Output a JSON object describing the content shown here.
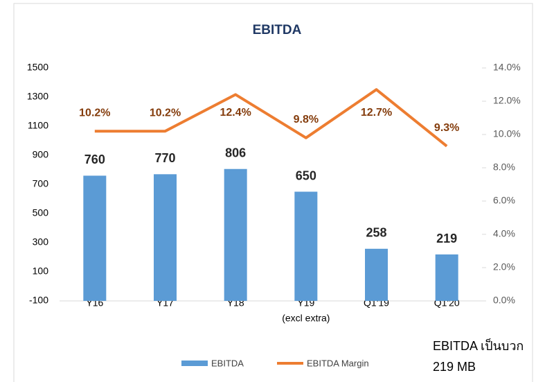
{
  "chart_data": {
    "type": "bar_line",
    "title": "EBITDA",
    "categories": [
      "Y16",
      "Y17",
      "Y18",
      "Y19",
      "Q1'19",
      "Q1'20"
    ],
    "category_note": "(excl extra)",
    "series": [
      {
        "name": "EBITDA",
        "color": "#5b9bd5",
        "type": "bar",
        "values": [
          760,
          770,
          806,
          650,
          258,
          219
        ]
      },
      {
        "name": "EBITDA Margin",
        "color": "#ed7d31",
        "type": "line",
        "axis": "y2",
        "values": [
          10.2,
          10.2,
          12.4,
          9.8,
          12.7,
          9.3
        ],
        "value_labels": [
          "10.2%",
          "10.2%",
          "12.4%",
          "9.8%",
          "12.7%",
          "9.3%"
        ]
      }
    ],
    "ylim": [
      -100,
      1500
    ],
    "yticks": [
      -100,
      100,
      300,
      500,
      700,
      900,
      1100,
      1300,
      1500
    ],
    "y2lim": [
      0,
      14
    ],
    "y2ticks": [
      {
        "value": 0,
        "label": "0.0%"
      },
      {
        "value": 2,
        "label": "2.0%"
      },
      {
        "value": 4,
        "label": "4.0%"
      },
      {
        "value": 6,
        "label": "6.0%"
      },
      {
        "value": 8,
        "label": "8.0%"
      },
      {
        "value": 10,
        "label": "10.0%"
      },
      {
        "value": 12,
        "label": "12.0%"
      },
      {
        "value": 14,
        "label": "14.0%"
      }
    ],
    "legend": "bottom",
    "annotations": [
      "EBITDA เป็นบวก",
      "219 MB"
    ]
  }
}
